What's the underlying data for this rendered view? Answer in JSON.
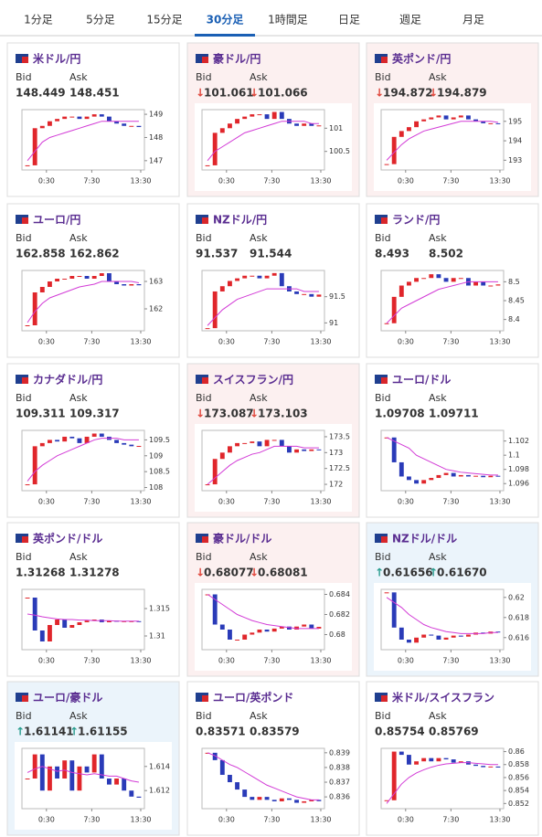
{
  "tabs": {
    "items": [
      "1分足",
      "5分足",
      "15分足",
      "30分足",
      "1時間足",
      "日足",
      "週足",
      "月足"
    ],
    "active": 3
  },
  "labels": {
    "bid": "Bid",
    "ask": "Ask"
  },
  "x_labels": [
    "0:30",
    "7:30",
    "13:30"
  ],
  "colors": {
    "up": "#e0262b",
    "down": "#2a3bb8",
    "ma": "#d23bd6",
    "arrow_down": "#e0463b",
    "arrow_up": "#2a9d8f",
    "bg_pink": "#fcf0f0",
    "bg_blue": "#ebf4fb",
    "bg_white": "#ffffff"
  },
  "panels": [
    {
      "name": "米ドル/円",
      "bid": "148.449",
      "ask": "148.451",
      "bg": "white",
      "chart": {
        "type": "candlestick",
        "ylim": [
          146.6,
          149.2
        ],
        "yticks": [
          147,
          148,
          149
        ],
        "close": {
          "values": [
            146.8,
            148.4,
            148.5,
            148.7,
            148.8,
            148.9,
            148.9,
            148.8,
            148.9,
            149.0,
            148.9,
            148.7,
            148.6,
            148.5,
            148.5,
            148.45
          ]
        },
        "ma": {
          "values": [
            147.0,
            147.4,
            147.8,
            148.0,
            148.1,
            148.2,
            148.3,
            148.4,
            148.5,
            148.6,
            148.7,
            148.7,
            148.7,
            148.7,
            148.7,
            148.7
          ]
        }
      }
    },
    {
      "name": "豪ドル/円",
      "bid": "101.061",
      "ask": "101.066",
      "arrow": "↓",
      "arrow_color": "down",
      "bg": "pink",
      "chart": {
        "type": "candlestick",
        "ylim": [
          100.1,
          101.4
        ],
        "yticks": [
          100.5,
          101
        ],
        "close": {
          "values": [
            100.2,
            100.9,
            101.0,
            101.1,
            101.2,
            101.25,
            101.3,
            101.3,
            101.2,
            101.35,
            101.2,
            101.1,
            101.05,
            101.1,
            101.05,
            101.06
          ]
        },
        "ma": {
          "values": [
            100.3,
            100.5,
            100.6,
            100.7,
            100.8,
            100.9,
            100.95,
            101.0,
            101.05,
            101.1,
            101.15,
            101.15,
            101.15,
            101.15,
            101.1,
            101.1
          ]
        }
      }
    },
    {
      "name": "英ポンド/円",
      "bid": "194.872",
      "ask": "194.879",
      "arrow": "↓",
      "arrow_color": "down",
      "bg": "pink",
      "chart": {
        "type": "candlestick",
        "ylim": [
          192.5,
          195.6
        ],
        "yticks": [
          193,
          194,
          195
        ],
        "close": {
          "values": [
            192.8,
            194.2,
            194.5,
            194.7,
            195.0,
            195.1,
            195.2,
            195.3,
            195.1,
            195.2,
            195.3,
            195.1,
            195.0,
            194.9,
            194.9,
            194.87
          ]
        },
        "ma": {
          "values": [
            193.0,
            193.4,
            193.8,
            194.1,
            194.3,
            194.5,
            194.6,
            194.7,
            194.8,
            194.9,
            195.0,
            195.0,
            195.0,
            195.0,
            195.0,
            194.95
          ]
        }
      }
    },
    {
      "name": "ユーロ/円",
      "bid": "162.858",
      "ask": "162.862",
      "bg": "white",
      "chart": {
        "type": "candlestick",
        "ylim": [
          161.2,
          163.4
        ],
        "yticks": [
          162,
          163
        ],
        "close": {
          "values": [
            161.4,
            162.6,
            162.8,
            163.0,
            163.1,
            163.1,
            163.2,
            163.2,
            163.1,
            163.2,
            163.3,
            163.0,
            162.9,
            162.85,
            162.9,
            162.86
          ]
        },
        "ma": {
          "values": [
            161.5,
            161.9,
            162.2,
            162.4,
            162.5,
            162.6,
            162.7,
            162.8,
            162.85,
            162.9,
            163.0,
            163.0,
            163.0,
            163.0,
            163.0,
            162.95
          ]
        }
      }
    },
    {
      "name": "NZドル/円",
      "bid": "91.537",
      "ask": "91.544",
      "bg": "white",
      "chart": {
        "type": "candlestick",
        "ylim": [
          90.85,
          92.0
        ],
        "yticks": [
          91,
          91.5
        ],
        "close": {
          "values": [
            90.9,
            91.6,
            91.7,
            91.8,
            91.85,
            91.9,
            91.9,
            91.85,
            91.9,
            91.95,
            91.7,
            91.6,
            91.55,
            91.55,
            91.5,
            91.54
          ]
        },
        "ma": {
          "values": [
            90.95,
            91.1,
            91.25,
            91.35,
            91.45,
            91.5,
            91.55,
            91.6,
            91.65,
            91.65,
            91.65,
            91.65,
            91.65,
            91.6,
            91.6,
            91.6
          ]
        }
      }
    },
    {
      "name": "ランド/円",
      "bid": "8.493",
      "ask": "8.502",
      "bg": "white",
      "chart": {
        "type": "candlestick",
        "ylim": [
          8.37,
          8.53
        ],
        "yticks": [
          8.4,
          8.45,
          8.5
        ],
        "close": {
          "values": [
            8.39,
            8.46,
            8.49,
            8.5,
            8.51,
            8.51,
            8.52,
            8.51,
            8.5,
            8.51,
            8.51,
            8.49,
            8.5,
            8.49,
            8.49,
            8.493
          ]
        },
        "ma": {
          "values": [
            8.39,
            8.41,
            8.43,
            8.44,
            8.45,
            8.46,
            8.47,
            8.48,
            8.485,
            8.49,
            8.495,
            8.5,
            8.5,
            8.5,
            8.5,
            8.5
          ]
        }
      }
    },
    {
      "name": "カナダドル/円",
      "bid": "109.311",
      "ask": "109.317",
      "bg": "white",
      "chart": {
        "type": "candlestick",
        "ylim": [
          107.9,
          109.8
        ],
        "yticks": [
          108,
          108.5,
          109,
          109.5
        ],
        "close": {
          "values": [
            108.1,
            109.3,
            109.4,
            109.5,
            109.45,
            109.6,
            109.55,
            109.4,
            109.6,
            109.7,
            109.6,
            109.5,
            109.4,
            109.35,
            109.3,
            109.31
          ]
        },
        "ma": {
          "values": [
            108.2,
            108.5,
            108.7,
            108.85,
            109.0,
            109.1,
            109.2,
            109.3,
            109.4,
            109.5,
            109.55,
            109.55,
            109.55,
            109.5,
            109.5,
            109.5
          ]
        }
      }
    },
    {
      "name": "スイスフラン/円",
      "bid": "173.087",
      "ask": "173.103",
      "arrow": "↓",
      "arrow_color": "down",
      "bg": "pink",
      "chart": {
        "type": "candlestick",
        "ylim": [
          171.8,
          173.7
        ],
        "yticks": [
          172,
          172.5,
          173,
          173.5
        ],
        "close": {
          "values": [
            172.0,
            172.8,
            173.0,
            173.2,
            173.3,
            173.3,
            173.35,
            173.2,
            173.4,
            173.4,
            173.2,
            173.0,
            173.1,
            173.05,
            173.1,
            173.09
          ]
        },
        "ma": {
          "values": [
            172.0,
            172.2,
            172.4,
            172.6,
            172.75,
            172.85,
            172.95,
            173.0,
            173.1,
            173.2,
            173.2,
            173.2,
            173.2,
            173.15,
            173.15,
            173.15
          ]
        }
      }
    },
    {
      "name": "ユーロ/ドル",
      "bid": "1.09708",
      "ask": "1.09711",
      "bg": "white",
      "chart": {
        "type": "candlestick",
        "ylim": [
          1.095,
          1.1035
        ],
        "yticks": [
          1.096,
          1.098,
          1.1,
          1.102
        ],
        "close": {
          "values": [
            1.1025,
            1.099,
            1.097,
            1.0965,
            1.096,
            1.0965,
            1.0968,
            1.0972,
            1.0975,
            1.097,
            1.0972,
            1.097,
            1.0971,
            1.0969,
            1.0971,
            1.09708
          ]
        },
        "ma": {
          "values": [
            1.1025,
            1.102,
            1.1015,
            1.101,
            1.1,
            1.0995,
            1.099,
            1.0985,
            1.098,
            1.0978,
            1.0976,
            1.0975,
            1.0974,
            1.0973,
            1.0972,
            1.0972
          ]
        }
      }
    },
    {
      "name": "英ポンド/ドル",
      "bid": "1.31268",
      "ask": "1.31278",
      "bg": "white",
      "chart": {
        "type": "candlestick",
        "ylim": [
          1.3075,
          1.3185
        ],
        "yticks": [
          1.31,
          1.315
        ],
        "close": {
          "values": [
            1.317,
            1.311,
            1.309,
            1.312,
            1.313,
            1.3115,
            1.312,
            1.3125,
            1.3128,
            1.313,
            1.3125,
            1.3128,
            1.3126,
            1.3127,
            1.3127,
            1.31268
          ]
        },
        "ma": {
          "values": [
            1.314,
            1.3138,
            1.3135,
            1.3133,
            1.3131,
            1.313,
            1.313,
            1.3129,
            1.3129,
            1.3128,
            1.3128,
            1.3128,
            1.3127,
            1.3127,
            1.3127,
            1.3127
          ]
        }
      }
    },
    {
      "name": "豪ドル/ドル",
      "bid": "0.68077",
      "ask": "0.68081",
      "arrow": "↓",
      "arrow_color": "down",
      "bg": "pink",
      "chart": {
        "type": "candlestick",
        "ylim": [
          0.6785,
          0.6845
        ],
        "yticks": [
          0.68,
          0.682,
          0.684
        ],
        "close": {
          "values": [
            0.684,
            0.681,
            0.6805,
            0.6795,
            0.6795,
            0.68,
            0.6802,
            0.6805,
            0.6803,
            0.6806,
            0.6808,
            0.6805,
            0.6808,
            0.681,
            0.6806,
            0.68077
          ]
        },
        "ma": {
          "values": [
            0.684,
            0.6835,
            0.683,
            0.6825,
            0.682,
            0.6817,
            0.6814,
            0.6812,
            0.681,
            0.6809,
            0.6808,
            0.6807,
            0.6806,
            0.6806,
            0.6806,
            0.6806
          ]
        }
      }
    },
    {
      "name": "NZドル/ドル",
      "bid": "0.61656",
      "ask": "0.61670",
      "arrow": "↑",
      "arrow_color": "up",
      "bg": "blue",
      "chart": {
        "type": "candlestick",
        "ylim": [
          0.6148,
          0.6208
        ],
        "yticks": [
          0.616,
          0.618,
          0.62
        ],
        "close": {
          "values": [
            0.6205,
            0.617,
            0.6158,
            0.6155,
            0.616,
            0.6163,
            0.6162,
            0.6158,
            0.616,
            0.6162,
            0.6161,
            0.6163,
            0.6165,
            0.6164,
            0.6166,
            0.61656
          ]
        },
        "ma": {
          "values": [
            0.62,
            0.6195,
            0.619,
            0.6183,
            0.6178,
            0.6173,
            0.617,
            0.6168,
            0.6166,
            0.6165,
            0.6164,
            0.6164,
            0.6164,
            0.6164,
            0.6165,
            0.6165
          ]
        }
      }
    },
    {
      "name": "ユーロ/豪ドル",
      "bid": "1.61141",
      "ask": "1.61155",
      "arrow": "↑",
      "arrow_color": "up",
      "bg": "blue",
      "chart": {
        "type": "candlestick",
        "ylim": [
          1.6105,
          1.6155
        ],
        "yticks": [
          1.612,
          1.614
        ],
        "close": {
          "values": [
            1.613,
            1.615,
            1.612,
            1.614,
            1.613,
            1.6145,
            1.612,
            1.614,
            1.6135,
            1.615,
            1.613,
            1.6125,
            1.613,
            1.612,
            1.6115,
            1.61141
          ]
        },
        "ma": {
          "values": [
            1.6135,
            1.6138,
            1.614,
            1.6138,
            1.6136,
            1.6137,
            1.6135,
            1.6134,
            1.6133,
            1.6134,
            1.6133,
            1.6132,
            1.6132,
            1.613,
            1.6128,
            1.6127
          ]
        }
      }
    },
    {
      "name": "ユーロ/英ポンド",
      "bid": "0.83571",
      "ask": "0.83579",
      "bg": "white",
      "chart": {
        "type": "candlestick",
        "ylim": [
          0.8352,
          0.8393
        ],
        "yticks": [
          0.836,
          0.837,
          0.838,
          0.839
        ],
        "close": {
          "values": [
            0.839,
            0.8385,
            0.8375,
            0.837,
            0.8365,
            0.836,
            0.8358,
            0.836,
            0.8358,
            0.8357,
            0.8359,
            0.8358,
            0.8356,
            0.8357,
            0.8358,
            0.83571
          ]
        },
        "ma": {
          "values": [
            0.839,
            0.8388,
            0.8385,
            0.8382,
            0.838,
            0.8377,
            0.8374,
            0.8371,
            0.8368,
            0.8366,
            0.8364,
            0.8362,
            0.836,
            0.8359,
            0.8358,
            0.8358
          ]
        }
      }
    },
    {
      "name": "米ドル/スイスフラン",
      "bid": "0.85754",
      "ask": "0.85769",
      "bg": "white",
      "chart": {
        "type": "candlestick",
        "ylim": [
          0.8512,
          0.8605
        ],
        "yticks": [
          0.852,
          0.854,
          0.856,
          0.858,
          0.86
        ],
        "close": {
          "values": [
            0.8525,
            0.86,
            0.8595,
            0.858,
            0.8585,
            0.859,
            0.8585,
            0.859,
            0.8588,
            0.8583,
            0.8585,
            0.858,
            0.8578,
            0.8576,
            0.8577,
            0.85754
          ]
        },
        "ma": {
          "values": [
            0.852,
            0.8535,
            0.855,
            0.856,
            0.8567,
            0.8572,
            0.8576,
            0.8579,
            0.8581,
            0.8582,
            0.8583,
            0.8583,
            0.8582,
            0.8581,
            0.858,
            0.858
          ]
        }
      }
    }
  ]
}
